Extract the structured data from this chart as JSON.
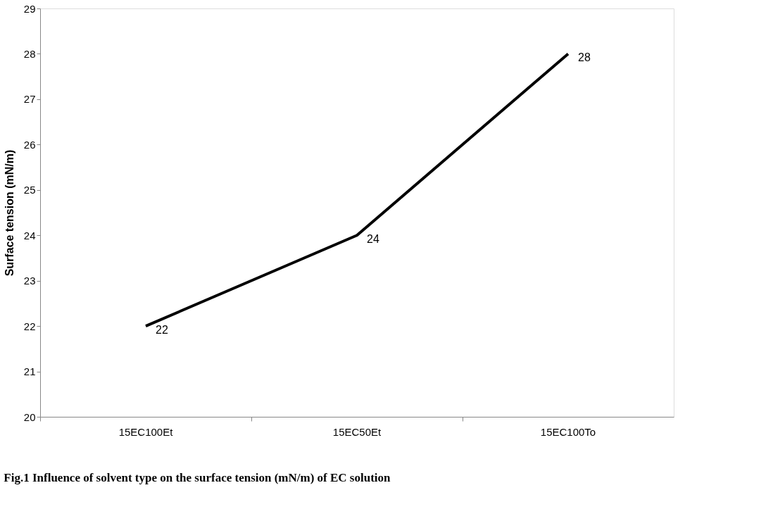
{
  "chart_data": {
    "type": "line",
    "ylabel": "Surface tension (mN/m)",
    "categories": [
      "15EC100Et",
      "15EC50Et",
      "15EC100To"
    ],
    "series": [
      {
        "color": "#000000",
        "values": [
          22,
          24,
          28
        ]
      }
    ],
    "ylim": [
      20,
      29
    ],
    "yticks": [
      20,
      21,
      22,
      23,
      24,
      25,
      26,
      27,
      28,
      29
    ],
    "grid": false,
    "marker": "none",
    "line_style": "solid",
    "data_labels": true,
    "annotations": [
      "Fig.1 Influence of solvent type on the surface tension (mN/m) of EC solution"
    ]
  }
}
